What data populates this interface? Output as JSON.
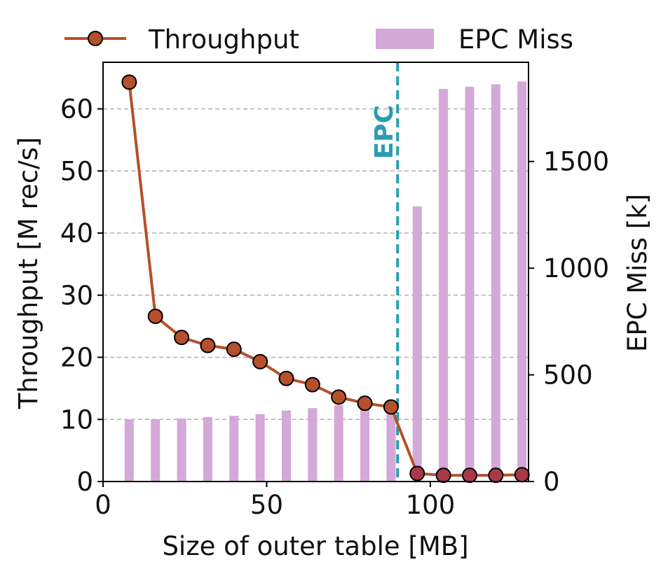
{
  "chart_data": {
    "type": "bar+line",
    "xlabel": "Size of outer table [MB]",
    "ylabel_left": "Throughput [M rec/s]",
    "ylabel_right": "EPC Miss [k]",
    "xlim": [
      0,
      130
    ],
    "ylim_left": [
      0,
      67.5
    ],
    "ylim_right": [
      0,
      1965
    ],
    "xticks": [
      0,
      50,
      100
    ],
    "yticks_left": [
      0,
      10,
      20,
      30,
      40,
      50,
      60
    ],
    "yticks_right": [
      0,
      500,
      1000,
      1500
    ],
    "grid": "horizontal dashed",
    "legend_position": "top",
    "vline": {
      "x": 90,
      "label": "EPC",
      "color": "#2a9db0"
    },
    "series": [
      {
        "name": "Throughput",
        "kind": "line",
        "axis": "left",
        "color": "#b5502a",
        "x": [
          8,
          16,
          24,
          32,
          40,
          48,
          56,
          64,
          72,
          80,
          88,
          96,
          104,
          112,
          120,
          128
        ],
        "values": [
          64.3,
          26.6,
          23.2,
          21.9,
          21.3,
          19.3,
          16.6,
          15.6,
          13.6,
          12.6,
          12.0,
          1.3,
          1.0,
          1.0,
          1.0,
          1.1
        ]
      },
      {
        "name": "EPC Miss",
        "kind": "bar",
        "axis": "right",
        "color": "#d4a8d8",
        "x": [
          8,
          16,
          24,
          32,
          40,
          48,
          56,
          64,
          72,
          80,
          88,
          96,
          104,
          112,
          120,
          128
        ],
        "values": [
          292,
          292,
          295,
          302,
          308,
          316,
          333,
          344,
          358,
          370,
          365,
          1290,
          1840,
          1850,
          1862,
          1875
        ]
      }
    ]
  }
}
